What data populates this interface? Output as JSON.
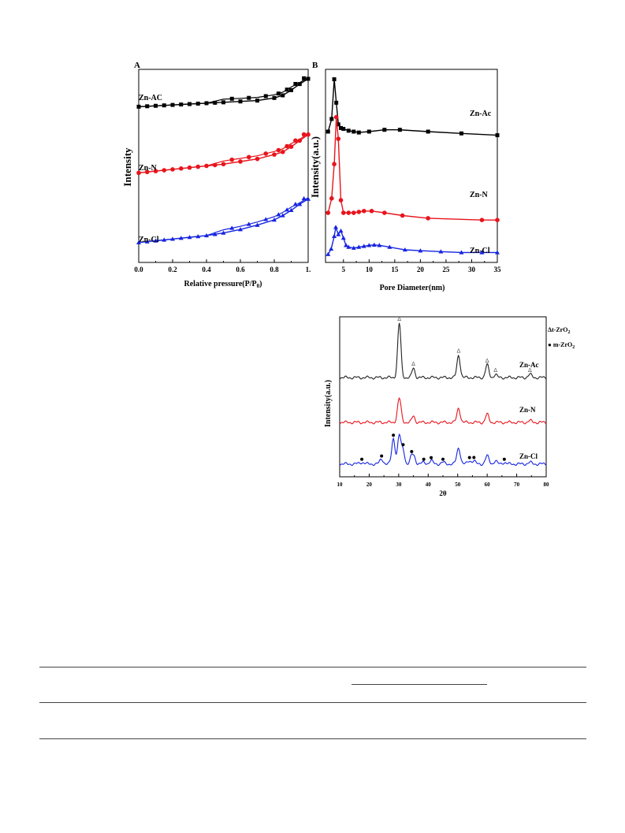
{
  "chart_data": [
    {
      "panel_label": "A",
      "type": "line",
      "xlabel": "Relative pressure(P/P0)",
      "xlabel_parts": [
        "Relative pressure(P/P",
        "0",
        ")"
      ],
      "ylabel": "Intensity",
      "xlim": [
        0,
        1
      ],
      "x_ticks": [
        "0.0",
        "0.2",
        "0.4",
        "0.6",
        "0.8",
        "1."
      ],
      "x_tick_values": [
        0,
        0.2,
        0.4,
        0.6,
        0.8,
        1.0
      ],
      "ylim": [
        0,
        100
      ],
      "y_ticks_shown": false,
      "series": [
        {
          "name": "Zn-AC",
          "color": "#000000",
          "marker": "square",
          "x": [
            0.0,
            0.1,
            0.2,
            0.3,
            0.4,
            0.5,
            0.6,
            0.7,
            0.8,
            0.85,
            0.9,
            0.95,
            1.0
          ],
          "y": [
            84,
            84.5,
            85,
            85.5,
            86,
            86.5,
            87,
            87.5,
            89,
            90.5,
            93.5,
            97,
            100
          ]
        },
        {
          "name": "Zn-N",
          "color": "#e8141c",
          "marker": "circle",
          "x": [
            0.0,
            0.1,
            0.2,
            0.3,
            0.4,
            0.5,
            0.6,
            0.7,
            0.8,
            0.85,
            0.9,
            0.95,
            1.0
          ],
          "y": [
            46,
            47,
            48,
            49,
            50,
            51,
            52.5,
            54,
            56.5,
            58,
            61,
            64.5,
            68
          ]
        },
        {
          "name": "Zn-Cl",
          "color": "#1624e0",
          "marker": "triangle",
          "x": [
            0.0,
            0.1,
            0.2,
            0.3,
            0.4,
            0.5,
            0.6,
            0.7,
            0.8,
            0.85,
            0.9,
            0.95,
            1.0
          ],
          "y": [
            6,
            7,
            8,
            9,
            10,
            11.5,
            13.5,
            16,
            19,
            21.5,
            24.5,
            28,
            31
          ]
        }
      ]
    },
    {
      "panel_label": "B",
      "type": "line",
      "xlabel": "Pore Diameter(nm)",
      "ylabel": "Intensity(a.u.)",
      "xlim": [
        1.5,
        35
      ],
      "x_ticks": [
        "5",
        "10",
        "15",
        "20",
        "25",
        "30",
        "35"
      ],
      "x_tick_values": [
        5,
        10,
        15,
        20,
        25,
        30,
        35
      ],
      "ylim": [
        0,
        100
      ],
      "y_ticks_shown": false,
      "series": [
        {
          "name": "Zn-Ac",
          "color": "#000000",
          "marker": "square",
          "x": [
            2.0,
            2.7,
            3.2,
            3.6,
            4.0,
            4.5,
            5.0,
            6.0,
            7.0,
            8.0,
            10.0,
            13.0,
            16.0,
            21.5,
            28.0,
            35.0
          ],
          "y": [
            69,
            76,
            98,
            85,
            73,
            71,
            70.5,
            69.5,
            69,
            68.5,
            69,
            70,
            70,
            69,
            68,
            67
          ]
        },
        {
          "name": "Zn-N",
          "color": "#e8141c",
          "marker": "circle",
          "x": [
            2.0,
            2.7,
            3.2,
            3.6,
            4.0,
            4.5,
            5.0,
            6.0,
            7.0,
            8.0,
            9.0,
            10.5,
            13.0,
            16.5,
            21.5,
            32.0,
            35.0
          ],
          "y": [
            24,
            32,
            51,
            77,
            65,
            31,
            24,
            24,
            24,
            24.5,
            25,
            25,
            24,
            22.5,
            21,
            20,
            20
          ]
        },
        {
          "name": "Zn-Cl",
          "color": "#1624e0",
          "marker": "triangle",
          "x": [
            2.0,
            2.6,
            3.2,
            3.5,
            4.0,
            4.5,
            5.0,
            5.5,
            6.0,
            7.0,
            8.0,
            9.0,
            10.0,
            11.0,
            12.0,
            14.0,
            17.0,
            20.0,
            24.0,
            28.0,
            32.0,
            35.0
          ],
          "y": [
            1,
            4,
            11,
            16,
            12,
            14,
            10,
            6,
            5,
            4.5,
            5,
            5.5,
            6,
            6.2,
            6,
            5,
            3.5,
            3,
            2.5,
            2,
            2,
            2
          ]
        }
      ]
    },
    {
      "type": "line",
      "xlabel": "2θ",
      "ylabel": "Intensity(a.u.)",
      "xlim": [
        10,
        80
      ],
      "x_ticks": [
        "10",
        "20",
        "30",
        "40",
        "50",
        "60",
        "70",
        "80"
      ],
      "x_tick_values": [
        10,
        20,
        30,
        40,
        50,
        60,
        70,
        80
      ],
      "ylim": [
        0,
        100
      ],
      "y_ticks_shown": false,
      "legend": {
        "position": "top-right",
        "entries": [
          {
            "symbol": "Δ",
            "label_parts": [
              "t-ZrO",
              "2"
            ],
            "label": "t-ZrO2"
          },
          {
            "symbol": "●",
            "label_parts": [
              "m-ZrO",
              "2"
            ],
            "label": "m-ZrO2"
          }
        ]
      },
      "series": [
        {
          "name": "Zn-Ac",
          "color": "#222222",
          "baseline": 62,
          "peaks": [
            [
              30.2,
              34,
              0.55
            ],
            [
              35.0,
              6,
              0.5
            ],
            [
              50.3,
              14,
              0.55
            ],
            [
              60.0,
              8,
              0.55
            ],
            [
              62.8,
              2,
              0.5
            ],
            [
              74.5,
              2,
              0.6
            ]
          ],
          "markers_delta_x": [
            30.2,
            35.0,
            50.3,
            60.0,
            62.8,
            74.5
          ]
        },
        {
          "name": "Zn-N",
          "color": "#e8141c",
          "baseline": 34,
          "peaks": [
            [
              30.2,
              15,
              0.6
            ],
            [
              35.0,
              4,
              0.5
            ],
            [
              50.3,
              9,
              0.55
            ],
            [
              60.0,
              5,
              0.55
            ],
            [
              74.5,
              1,
              0.6
            ]
          ]
        },
        {
          "name": "Zn-Cl",
          "color": "#1624e0",
          "baseline": 8,
          "peaks": [
            [
              17.5,
              1,
              0.8
            ],
            [
              24.2,
              3,
              0.6
            ],
            [
              28.2,
              16,
              0.55
            ],
            [
              30.2,
              18,
              0.55
            ],
            [
              31.5,
              9,
              0.5
            ],
            [
              34.4,
              5,
              0.5
            ],
            [
              35.3,
              4,
              0.5
            ],
            [
              38.5,
              1,
              0.6
            ],
            [
              41.0,
              2,
              0.6
            ],
            [
              45.0,
              1,
              0.6
            ],
            [
              50.3,
              10,
              0.6
            ],
            [
              54.0,
              2,
              0.6
            ],
            [
              55.5,
              2,
              0.5
            ],
            [
              60.0,
              5,
              0.6
            ],
            [
              62.8,
              2,
              0.5
            ],
            [
              65.8,
              1,
              0.6
            ],
            [
              74.5,
              1,
              0.6
            ]
          ],
          "markers_dot_x": [
            17.5,
            24.2,
            28.2,
            31.5,
            34.4,
            38.5,
            41.0,
            45.0,
            54.0,
            55.5,
            65.8
          ]
        }
      ]
    }
  ]
}
